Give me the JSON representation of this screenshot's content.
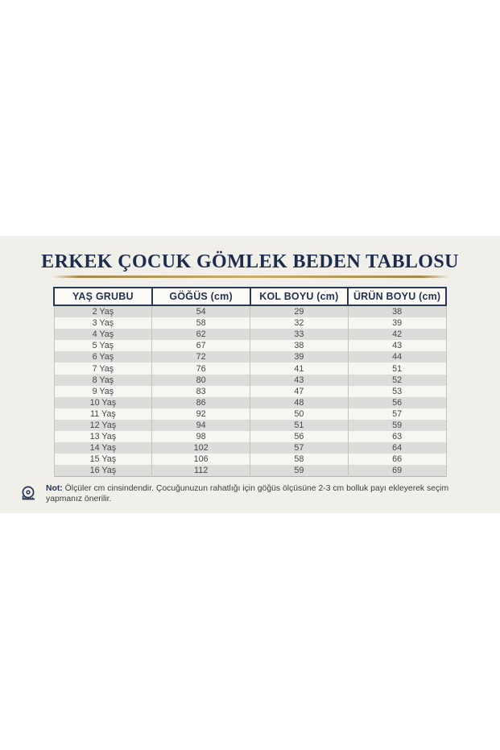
{
  "page": {
    "title": "ERKEK ÇOCUK GÖMLEK BEDEN TABLOSU"
  },
  "chart_data": {
    "type": "table",
    "title": "ERKEK ÇOCUK GÖMLEK BEDEN TABLOSU",
    "columns": [
      "YAŞ GRUBU",
      "GÖĞÜS (cm)",
      "KOL BOYU (cm)",
      "ÜRÜN BOYU (cm)"
    ],
    "rows": [
      [
        "2 Yaş",
        54,
        29,
        38
      ],
      [
        "3 Yaş",
        58,
        32,
        39
      ],
      [
        "4 Yaş",
        62,
        33,
        42
      ],
      [
        "5 Yaş",
        67,
        38,
        43
      ],
      [
        "6 Yaş",
        72,
        39,
        44
      ],
      [
        "7 Yaş",
        76,
        41,
        51
      ],
      [
        "8 Yaş",
        80,
        43,
        52
      ],
      [
        "9 Yaş",
        83,
        47,
        53
      ],
      [
        "10 Yaş",
        86,
        48,
        56
      ],
      [
        "11 Yaş",
        92,
        50,
        57
      ],
      [
        "12 Yaş",
        94,
        51,
        59
      ],
      [
        "13 Yaş",
        98,
        56,
        63
      ],
      [
        "14 Yaş",
        102,
        57,
        64
      ],
      [
        "15 Yaş",
        106,
        58,
        66
      ],
      [
        "16 Yaş",
        112,
        59,
        69
      ]
    ]
  },
  "note": {
    "label": "Not:",
    "text": "Ölçüler cm cinsindendir. Çocuğunuzun rahatlığı için göğüs ölçüsüne 2-3 cm bolluk payı ekleyerek seçim yapmanız önerilir."
  },
  "icons": {
    "measuring_tape": "measuring-tape-icon",
    "sparkle": "sparkle-decoration"
  },
  "colors": {
    "band_background": "#f0efe9",
    "navy": "#1d2c4e",
    "gold": "#c8a964",
    "stripe_gray": "#dcddda",
    "stripe_light": "#f6f6f3",
    "body_text": "#474747"
  }
}
